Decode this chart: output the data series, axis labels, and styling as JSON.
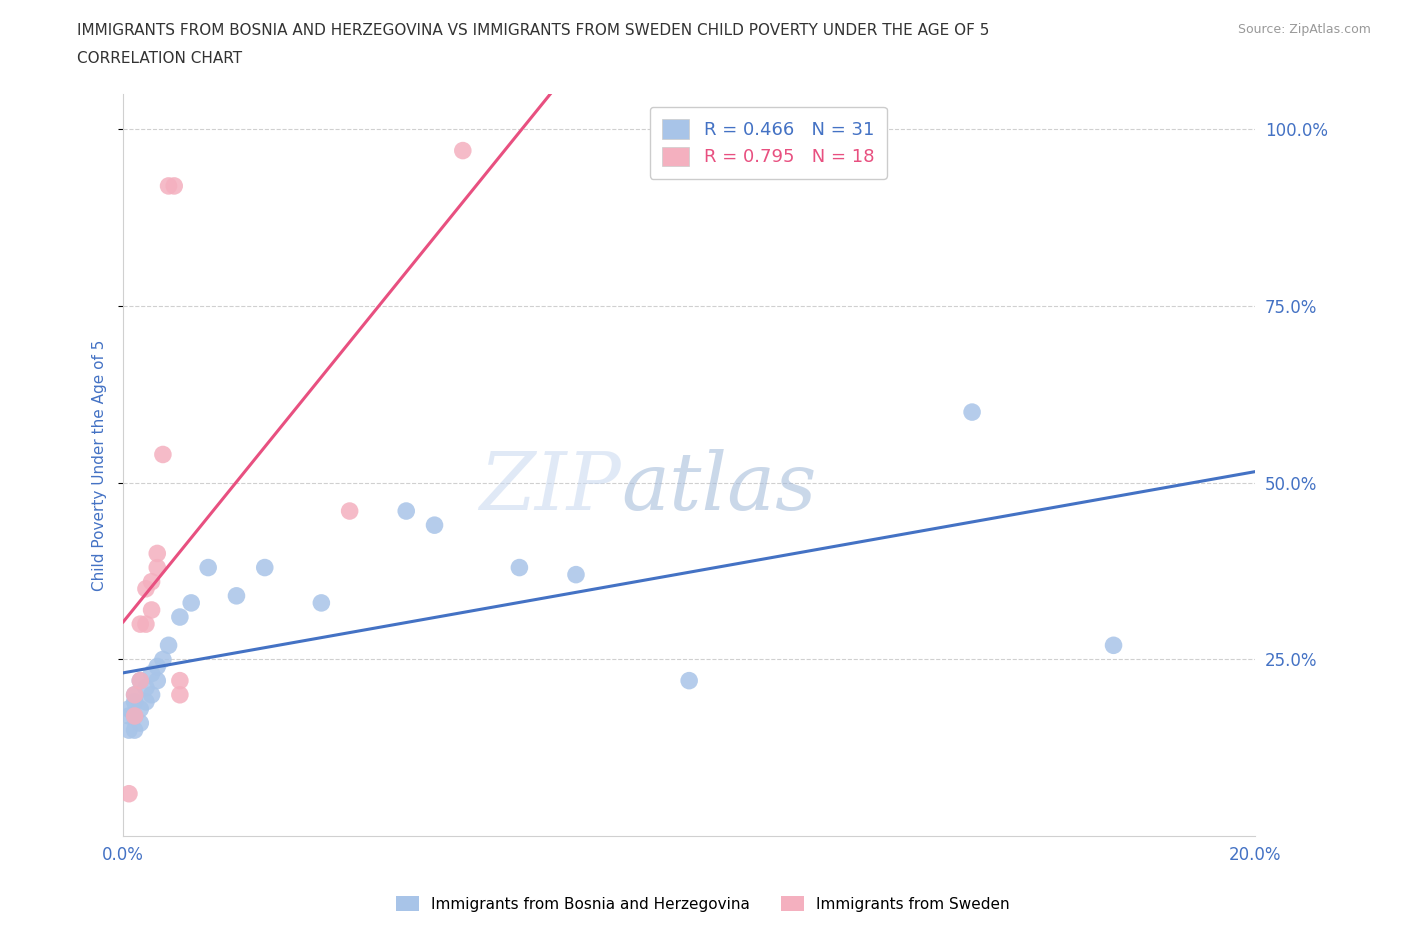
{
  "title_line1": "IMMIGRANTS FROM BOSNIA AND HERZEGOVINA VS IMMIGRANTS FROM SWEDEN CHILD POVERTY UNDER THE AGE OF 5",
  "title_line2": "CORRELATION CHART",
  "source_text": "Source: ZipAtlas.com",
  "ylabel": "Child Poverty Under the Age of 5",
  "watermark_part1": "ZIP",
  "watermark_part2": "atlas",
  "legend_r1": "R = 0.466",
  "legend_n1": "N = 31",
  "legend_r2": "R = 0.795",
  "legend_n2": "N = 18",
  "blue_color": "#a8c4e8",
  "pink_color": "#f4b0bf",
  "blue_line_color": "#4472c4",
  "pink_line_color": "#e85080",
  "text_color_blue": "#4472c4",
  "text_color_pink": "#e85080",
  "xlim": [
    0.0,
    0.2
  ],
  "ylim": [
    0.0,
    1.05
  ],
  "yticks": [
    0.25,
    0.5,
    0.75,
    1.0
  ],
  "ytick_labels": [
    "25.0%",
    "50.0%",
    "75.0%",
    "100.0%"
  ],
  "xticks": [
    0.0,
    0.05,
    0.1,
    0.15,
    0.2
  ],
  "xtick_labels": [
    "0.0%",
    "",
    "",
    "",
    "20.0%"
  ],
  "bosnia_x": [
    0.001,
    0.001,
    0.001,
    0.002,
    0.002,
    0.002,
    0.002,
    0.003,
    0.003,
    0.003,
    0.004,
    0.004,
    0.005,
    0.005,
    0.006,
    0.006,
    0.007,
    0.008,
    0.01,
    0.012,
    0.015,
    0.02,
    0.025,
    0.035,
    0.05,
    0.055,
    0.07,
    0.08,
    0.1,
    0.15,
    0.175
  ],
  "bosnia_y": [
    0.17,
    0.15,
    0.18,
    0.15,
    0.17,
    0.19,
    0.2,
    0.16,
    0.22,
    0.18,
    0.19,
    0.21,
    0.2,
    0.23,
    0.22,
    0.24,
    0.25,
    0.27,
    0.31,
    0.33,
    0.38,
    0.34,
    0.38,
    0.33,
    0.46,
    0.44,
    0.38,
    0.37,
    0.22,
    0.6,
    0.27
  ],
  "sweden_x": [
    0.001,
    0.002,
    0.002,
    0.003,
    0.003,
    0.004,
    0.004,
    0.005,
    0.005,
    0.006,
    0.006,
    0.007,
    0.008,
    0.009,
    0.01,
    0.01,
    0.04,
    0.06
  ],
  "sweden_y": [
    0.06,
    0.17,
    0.2,
    0.22,
    0.3,
    0.3,
    0.35,
    0.32,
    0.36,
    0.38,
    0.4,
    0.54,
    0.92,
    0.92,
    0.2,
    0.22,
    0.46,
    0.97
  ]
}
